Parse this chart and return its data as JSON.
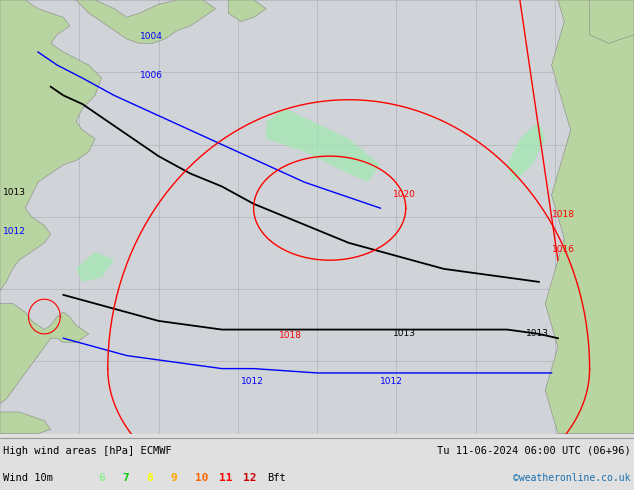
{
  "title_left": "High wind areas [hPa] ECMWF",
  "title_right": "Tu 11-06-2024 06:00 UTC (06+96)",
  "legend_label": "Wind 10m",
  "legend_items": [
    {
      "value": "6",
      "color": "#90ee90"
    },
    {
      "value": "7",
      "color": "#00cc00"
    },
    {
      "value": "8",
      "color": "#ffff00"
    },
    {
      "value": "9",
      "color": "#ffa500"
    },
    {
      "value": "10",
      "color": "#ff6600"
    },
    {
      "value": "11",
      "color": "#ff0000"
    },
    {
      "value": "12",
      "color": "#cc0000"
    }
  ],
  "legend_suffix": "Bft",
  "credit": "©weatheronline.co.uk",
  "ocean_color": "#d0d4d8",
  "land_color": "#b8d4a0",
  "land_edge": "#888888",
  "grid_color": "#b0b4b8",
  "bottom_bar_color": "#e0e0e0"
}
